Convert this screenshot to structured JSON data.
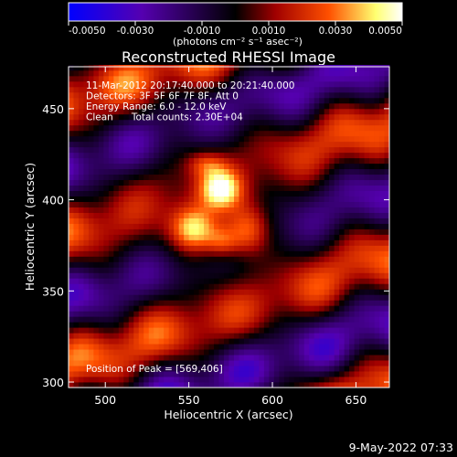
{
  "chart_data": {
    "type": "heatmap",
    "title": "Reconstructed RHESSI Image",
    "xlabel": "Heliocentric X (arcsec)",
    "ylabel": "Heliocentric Y (arcsec)",
    "xlim": [
      478,
      670
    ],
    "ylim": [
      297,
      473
    ],
    "x_ticks": [
      500,
      550,
      600,
      650
    ],
    "y_ticks": [
      300,
      350,
      400,
      450
    ],
    "colorbar": {
      "min": -0.005,
      "max": 0.005,
      "tick_values": [
        -0.005,
        -0.003,
        -0.001,
        0.001,
        0.003,
        0.005
      ],
      "tick_labels": [
        "-0.0050",
        "-0.0030",
        "-0.0010",
        "0.0010",
        "0.0030",
        "0.0050"
      ],
      "unit_label": "(photons cm⁻² s⁻¹ asec⁻²)",
      "colormap": [
        "#0000ff",
        "#5500b0",
        "#000000",
        "#a00000",
        "#ff5000",
        "#ffff70",
        "#ffffff"
      ]
    },
    "annotations": [
      "11-Mar-2012 20:17:40.000 to 20:21:40.000",
      "Detectors: 3F 5F 6F 7F 8F, Att 0",
      "Energy Range: 6.0 - 12.0 keV",
      "Clean      Total counts: 2.30E+04"
    ],
    "peak_label": "Position of Peak = [569,406]",
    "peak": [
      569,
      406
    ],
    "sources": [
      {
        "x": 569,
        "y": 406,
        "peak": 0.0048,
        "sx": 9,
        "sy": 8
      },
      {
        "x": 553,
        "y": 384,
        "peak": 0.0044,
        "sx": 10,
        "sy": 9
      },
      {
        "x": 585,
        "y": 383,
        "peak": 0.0032,
        "sx": 9,
        "sy": 10
      },
      {
        "x": 570,
        "y": 377,
        "peak": 0.0022,
        "sx": 7,
        "sy": 6
      },
      {
        "x": 560,
        "y": 420,
        "peak": 0.0018,
        "sx": 8,
        "sy": 5
      }
    ]
  },
  "timestamp": "9-May-2022 07:33"
}
